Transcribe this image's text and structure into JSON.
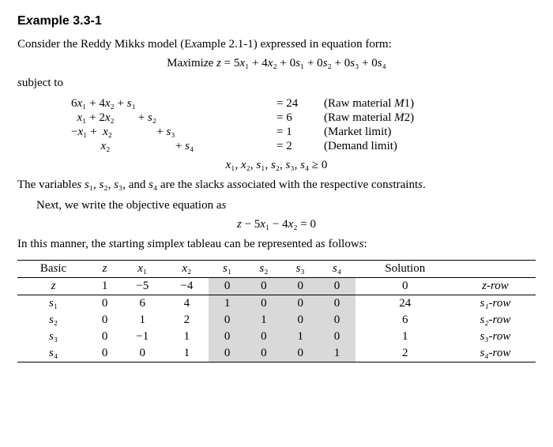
{
  "title": "Example 3.3-1",
  "intro": "Consider the Reddy Mikks model (Example 2.1-1) expressed in equation form:",
  "objective_line": "Maximize z = 5x₁ + 4x₂ + 0s₁ + 0s₂ + 0s₃ + 0s₄",
  "subject_to": "subject to",
  "constraints": [
    {
      "lhs": "6x₁ + 4x₂ + s₁",
      "rhs": "= 24",
      "note": "(Raw material M1)"
    },
    {
      "lhs": "  x₁ + 2x₂        + s₂",
      "rhs": "= 6",
      "note": "(Raw material M2)"
    },
    {
      "lhs": "−x₁ +  x₂               + s₃",
      "rhs": "= 1",
      "note": "(Market limit)"
    },
    {
      "lhs": "          x₂                      + s₄",
      "rhs": "= 2",
      "note": "(Demand limit)"
    }
  ],
  "nonneg": "x₁, x₂, s₁, s₂, s₃, s₄ ≥ 0",
  "para2a": "The variables s₁, s₂, s₃, and s₄ are the slacks associated with the respective constraints.",
  "para2b": "Next, we write the objective equation as",
  "obj_eq": "z − 5x₁ − 4x₂ = 0",
  "para3": "In this manner, the starting simplex tableau can be represented as follows:",
  "tableau": {
    "headers": [
      "Basic",
      "z",
      "x₁",
      "x₂",
      "s₁",
      "s₂",
      "s₃",
      "s₄",
      "Solution",
      ""
    ],
    "shade_cols": [
      4,
      5,
      6,
      7
    ],
    "zrow": [
      "z",
      "1",
      "−5",
      "−4",
      "0",
      "0",
      "0",
      "0",
      "0",
      "z-row"
    ],
    "rows": [
      [
        "s₁",
        "0",
        "6",
        "4",
        "1",
        "0",
        "0",
        "0",
        "24",
        "s₁-row"
      ],
      [
        "s₂",
        "0",
        "1",
        "2",
        "0",
        "1",
        "0",
        "0",
        "6",
        "s₂-row"
      ],
      [
        "s₃",
        "0",
        "−1",
        "1",
        "0",
        "0",
        "1",
        "0",
        "1",
        "s₃-row"
      ],
      [
        "s₄",
        "0",
        "0",
        "1",
        "0",
        "0",
        "0",
        "1",
        "2",
        "s₄-row"
      ]
    ]
  }
}
